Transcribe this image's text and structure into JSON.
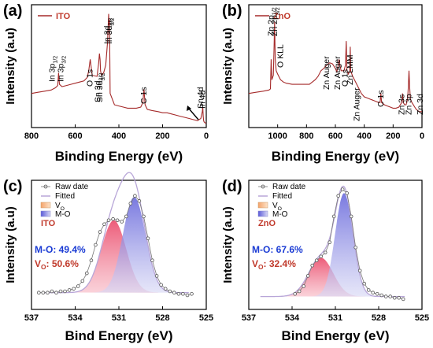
{
  "chart_data": [
    {
      "panel": "(a)",
      "type": "line",
      "xlabel": "Binding Energy (eV)",
      "ylabel": "Intensity (a.u)",
      "xlim": [
        800,
        0
      ],
      "xticks": [
        800,
        600,
        400,
        200,
        0
      ],
      "legend": "ITO",
      "legend_position": "top-left",
      "color": "#a52a2a",
      "x": [
        800,
        770,
        740,
        710,
        690,
        680,
        676,
        672,
        660,
        640,
        620,
        600,
        580,
        560,
        545,
        538,
        531,
        528,
        522,
        500,
        493,
        489,
        486,
        484,
        480,
        470,
        460,
        452,
        447,
        445,
        443,
        440,
        420,
        400,
        380,
        360,
        340,
        320,
        300,
        290,
        285,
        280,
        270,
        250,
        220,
        200,
        180,
        160,
        140,
        120,
        100,
        80,
        60,
        40,
        25,
        18,
        16,
        14,
        12,
        10,
        5,
        0
      ],
      "y": [
        0.3,
        0.31,
        0.32,
        0.33,
        0.35,
        0.37,
        0.48,
        0.38,
        0.36,
        0.37,
        0.38,
        0.39,
        0.4,
        0.41,
        0.44,
        0.5,
        0.6,
        0.55,
        0.46,
        0.45,
        0.56,
        0.65,
        0.6,
        0.5,
        0.46,
        0.48,
        0.55,
        0.75,
        1.0,
        0.9,
        0.95,
        0.3,
        0.2,
        0.19,
        0.18,
        0.17,
        0.17,
        0.17,
        0.18,
        0.22,
        0.34,
        0.2,
        0.16,
        0.15,
        0.14,
        0.13,
        0.13,
        0.12,
        0.11,
        0.1,
        0.09,
        0.08,
        0.07,
        0.06,
        0.08,
        0.14,
        0.18,
        0.1,
        0.06,
        0.05,
        0.04,
        0.04
      ],
      "peaks": [
        {
          "label": "In 3p",
          "sub": "1/2",
          "x": 705
        },
        {
          "label": "In 3p",
          "sub": "3/2",
          "x": 665
        },
        {
          "label": "O 1s",
          "sub": "",
          "x": 531
        },
        {
          "label": "Sn 3d",
          "sub": "3/2",
          "x": 495
        },
        {
          "label": "Sn 3d",
          "sub": "5/2",
          "x": 487
        },
        {
          "label": "In 3d",
          "sub": "3/2",
          "x": 452
        },
        {
          "label": "In 3d",
          "sub": "5/2",
          "x": 444
        },
        {
          "label": "C 1s",
          "sub": "",
          "x": 285
        },
        {
          "label": "Sn 4d",
          "sub": "",
          "x": 25
        },
        {
          "label": "In 4d",
          "sub": "",
          "x": 16
        }
      ]
    },
    {
      "panel": "(b)",
      "type": "line",
      "xlabel": "Binding Energy (eV)",
      "ylabel": "Intensity (a.u)",
      "xlim": [
        1200,
        0
      ],
      "xticks": [
        1000,
        800,
        600,
        400,
        200,
        0
      ],
      "legend": "ZnO",
      "legend_position": "top-left",
      "color": "#a52a2a",
      "x": [
        1200,
        1150,
        1100,
        1060,
        1050,
        1045,
        1040,
        1030,
        1025,
        1021,
        1017,
        1010,
        1000,
        980,
        960,
        940,
        900,
        860,
        820,
        780,
        760,
        740,
        720,
        700,
        680,
        660,
        640,
        620,
        600,
        590,
        585,
        580,
        575,
        570,
        560,
        540,
        530,
        525,
        520,
        510,
        500,
        497,
        494,
        480,
        460,
        440,
        420,
        400,
        380,
        360,
        340,
        320,
        300,
        290,
        285,
        280,
        260,
        240,
        220,
        200,
        180,
        160,
        150,
        140,
        135,
        130,
        120,
        110,
        100,
        95,
        90,
        85,
        80,
        70,
        60,
        50,
        40,
        30,
        20,
        10,
        0
      ],
      "y": [
        0.3,
        0.31,
        0.32,
        0.33,
        0.34,
        0.6,
        0.42,
        0.46,
        0.7,
        0.93,
        0.6,
        0.5,
        0.47,
        0.42,
        0.4,
        0.39,
        0.38,
        0.38,
        0.38,
        0.38,
        0.4,
        0.42,
        0.45,
        0.5,
        0.52,
        0.55,
        0.57,
        0.56,
        0.52,
        0.49,
        0.52,
        0.55,
        0.6,
        0.56,
        0.5,
        0.5,
        0.55,
        0.76,
        0.5,
        0.47,
        0.5,
        0.71,
        0.5,
        0.45,
        0.4,
        0.35,
        0.3,
        0.27,
        0.26,
        0.25,
        0.24,
        0.23,
        0.22,
        0.22,
        0.3,
        0.22,
        0.2,
        0.19,
        0.18,
        0.17,
        0.17,
        0.18,
        0.2,
        0.22,
        0.3,
        0.22,
        0.2,
        0.2,
        0.25,
        0.35,
        0.5,
        0.35,
        0.25,
        0.22,
        0.2,
        0.18,
        0.16,
        0.15,
        0.14,
        0.14,
        0.14
      ],
      "peaks": [
        {
          "label": "Zn 2p",
          "sub": "1/2",
          "x": 1045
        },
        {
          "label": "Zn 2p",
          "sub": "3/2",
          "x": 1021
        },
        {
          "label": "O KLL",
          "sub": "",
          "x": 978
        },
        {
          "label": "Zn Auger",
          "sub": "",
          "x": 660
        },
        {
          "label": "Zn Auger",
          "sub": "",
          "x": 585
        },
        {
          "label": "O 1s",
          "sub": "",
          "x": 531
        },
        {
          "label": "Zn LMM",
          "sub": "",
          "x": 497
        },
        {
          "label": "Zn Auger",
          "sub": "",
          "x": 450
        },
        {
          "label": "C 1s",
          "sub": "",
          "x": 285
        },
        {
          "label": "Zn 3s",
          "sub": "",
          "x": 140
        },
        {
          "label": "Zn 3p",
          "sub": "",
          "x": 90
        },
        {
          "label": "Zn 3d",
          "sub": "",
          "x": 10
        }
      ]
    },
    {
      "panel": "(c)",
      "type": "area",
      "xlabel": "Bind Energy (eV)",
      "ylabel": "Intensity (a.u)",
      "xlim": [
        537,
        525
      ],
      "xticks": [
        537,
        534,
        531,
        528,
        525
      ],
      "legend": [
        "Raw date",
        "Fitted",
        "V",
        "M-O"
      ],
      "legend_position": "top-left",
      "sample_label": "ITO",
      "annotations": [
        {
          "text": "M-O: 49.4%",
          "color": "#1a3bd4"
        },
        {
          "text": "V",
          "sub": "O",
          "suffix": ": 50.6%",
          "color": "#c0392b"
        }
      ],
      "baseline": 0.13,
      "components": [
        {
          "name": "V",
          "center": 531.35,
          "amp": 0.56,
          "sigma": 0.85,
          "color": "#e8365a"
        },
        {
          "name": "M-O",
          "center": 529.95,
          "amp": 0.74,
          "sigma": 0.78,
          "color": "#6b6be0"
        }
      ],
      "raw_x": [
        536.5,
        536.2,
        535.9,
        535.6,
        535.3,
        535.0,
        534.7,
        534.4,
        534.1,
        533.8,
        533.5,
        533.2,
        532.9,
        532.6,
        532.3,
        532.0,
        531.7,
        531.4,
        531.1,
        530.8,
        530.5,
        530.2,
        529.9,
        529.6,
        529.3,
        529.0,
        528.7,
        528.4,
        528.1,
        527.8,
        527.5,
        527.2,
        526.9,
        526.6,
        526.3,
        526.0
      ],
      "raw_y": [
        0.13,
        0.13,
        0.13,
        0.14,
        0.13,
        0.14,
        0.14,
        0.15,
        0.16,
        0.18,
        0.22,
        0.28,
        0.38,
        0.5,
        0.6,
        0.66,
        0.69,
        0.7,
        0.69,
        0.68,
        0.72,
        0.82,
        0.88,
        0.84,
        0.72,
        0.55,
        0.38,
        0.26,
        0.19,
        0.16,
        0.14,
        0.13,
        0.12,
        0.12,
        0.11,
        0.12
      ]
    },
    {
      "panel": "(d)",
      "type": "area",
      "xlabel": "Bind Energy (eV)",
      "ylabel": "Intensity (a.u)",
      "xlim": [
        537,
        525
      ],
      "xticks": [
        537,
        534,
        531,
        528,
        525
      ],
      "legend": [
        "Raw date",
        "Fitted",
        "V",
        "M-O"
      ],
      "legend_position": "top-left",
      "sample_label": "ZnO",
      "annotations": [
        {
          "text": "M-O: 67.6%",
          "color": "#1a3bd4"
        },
        {
          "text": "V",
          "sub": "O",
          "suffix": ": 32.4%",
          "color": "#c0392b"
        }
      ],
      "baseline": 0.1,
      "components": [
        {
          "name": "V",
          "center": 532.0,
          "amp": 0.3,
          "sigma": 0.85,
          "color": "#e8365a"
        },
        {
          "name": "M-O",
          "center": 530.4,
          "amp": 0.8,
          "sigma": 0.62,
          "color": "#6b6be0"
        }
      ],
      "raw_x": [
        533.8,
        533.5,
        533.2,
        532.9,
        532.6,
        532.3,
        532.0,
        531.7,
        531.4,
        531.1,
        530.8,
        530.5,
        530.2,
        529.9,
        529.6,
        529.3,
        529.0,
        528.7,
        528.4,
        528.1,
        527.8,
        527.5,
        527.2,
        526.9,
        526.6,
        526.3
      ],
      "raw_y": [
        0.12,
        0.14,
        0.18,
        0.26,
        0.34,
        0.38,
        0.41,
        0.44,
        0.52,
        0.72,
        0.88,
        0.93,
        0.9,
        0.72,
        0.48,
        0.3,
        0.2,
        0.15,
        0.13,
        0.12,
        0.11,
        0.1,
        0.1,
        0.09,
        0.09,
        0.08
      ]
    }
  ]
}
